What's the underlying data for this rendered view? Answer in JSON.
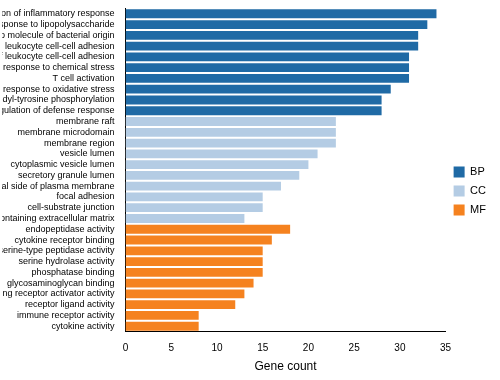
{
  "chart_data": {
    "type": "bar",
    "orientation": "horizontal",
    "x_label": "Gene count",
    "categories": [
      "regulation of inflammatory response",
      "response to lipopolysaccharide",
      "response to molecule of bacterial origin",
      "leukocyte cell-cell adhesion",
      "regulation of leukocyte cell-cell adhesion",
      "cellular response to chemical stress",
      "T cell activation",
      "response to oxidative stress",
      "peptidyl-tyrosine phosphorylation",
      "positive regulation of defense response",
      "membrane raft",
      "membrane microdomain",
      "membrane region",
      "vesicle lumen",
      "cytoplasmic vesicle lumen",
      "secretory granule lumen",
      "external side of plasma membrane",
      "focal adhesion",
      "cell-substrate junction",
      "collagen-containing extracellular matrix",
      "endopeptidase activity",
      "cytokine receptor binding",
      "serine-type peptidase activity",
      "serine hydrolase activity",
      "phosphatase binding",
      "glycosaminoglycan binding",
      "signaling receptor activator activity",
      "receptor ligand activity",
      "immune receptor activity",
      "cytokine activity"
    ],
    "series": [
      {
        "name": "BP",
        "color": "#1f6aa5",
        "values": [
          34,
          33,
          32,
          32,
          31,
          31,
          31,
          29,
          28,
          28,
          null,
          null,
          null,
          null,
          null,
          null,
          null,
          null,
          null,
          null,
          null,
          null,
          null,
          null,
          null,
          null,
          null,
          null,
          null,
          null
        ]
      },
      {
        "name": "CC",
        "color": "#b4cce4",
        "values": [
          null,
          null,
          null,
          null,
          null,
          null,
          null,
          null,
          null,
          null,
          23,
          23,
          23,
          21,
          20,
          19,
          17,
          15,
          15,
          13,
          null,
          null,
          null,
          null,
          null,
          null,
          null,
          null,
          null,
          null
        ]
      },
      {
        "name": "MF",
        "color": "#f5821f",
        "values": [
          null,
          null,
          null,
          null,
          null,
          null,
          null,
          null,
          null,
          null,
          null,
          null,
          null,
          null,
          null,
          null,
          null,
          null,
          null,
          null,
          18,
          16,
          15,
          15,
          15,
          14,
          13,
          12,
          8,
          8
        ]
      }
    ],
    "xlim": [
      0,
      35
    ],
    "xticks": [
      0,
      5,
      10,
      15,
      20,
      25,
      30,
      35
    ],
    "grid": false,
    "legend": "right"
  }
}
